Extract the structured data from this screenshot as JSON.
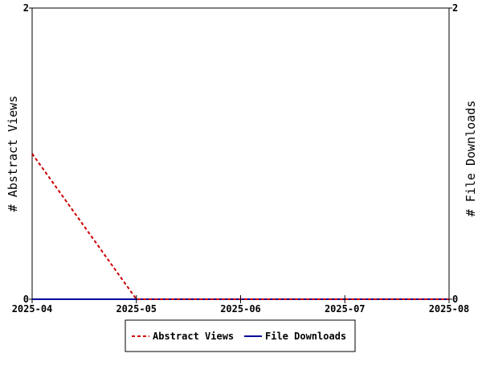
{
  "chart_data": {
    "type": "line",
    "x": [
      "2025-04",
      "2025-05",
      "2025-06",
      "2025-07",
      "2025-08"
    ],
    "xlim": [
      "2025-04",
      "2025-08"
    ],
    "ylabel_left": "# Abstract Views",
    "ylabel_right": "# File Downloads",
    "ylim_left": [
      0,
      2
    ],
    "ylim_right": [
      0,
      2
    ],
    "y_ticks_left": [
      "0",
      "2"
    ],
    "y_ticks_right": [
      "0",
      "2"
    ],
    "grid": false,
    "legend_position": "bottom-center",
    "series": [
      {
        "name": "Abstract Views",
        "axis": "left",
        "style": "dashed",
        "color": "#cc0000",
        "points": [
          {
            "x": "2025-04",
            "y": 1
          },
          {
            "x": "2025-05",
            "y": 0
          },
          {
            "x": "2025-06",
            "y": 0
          },
          {
            "x": "2025-07",
            "y": 0
          },
          {
            "x": "2025-08",
            "y": 0
          }
        ]
      },
      {
        "name": "File Downloads",
        "axis": "right",
        "style": "solid",
        "color": "#000099",
        "points": [
          {
            "x": "2025-04",
            "y": 0
          },
          {
            "x": "2025-05",
            "y": 0
          },
          {
            "x": "2025-06",
            "y": 0
          },
          {
            "x": "2025-07",
            "y": 0
          },
          {
            "x": "2025-08",
            "y": 0
          }
        ]
      }
    ]
  }
}
